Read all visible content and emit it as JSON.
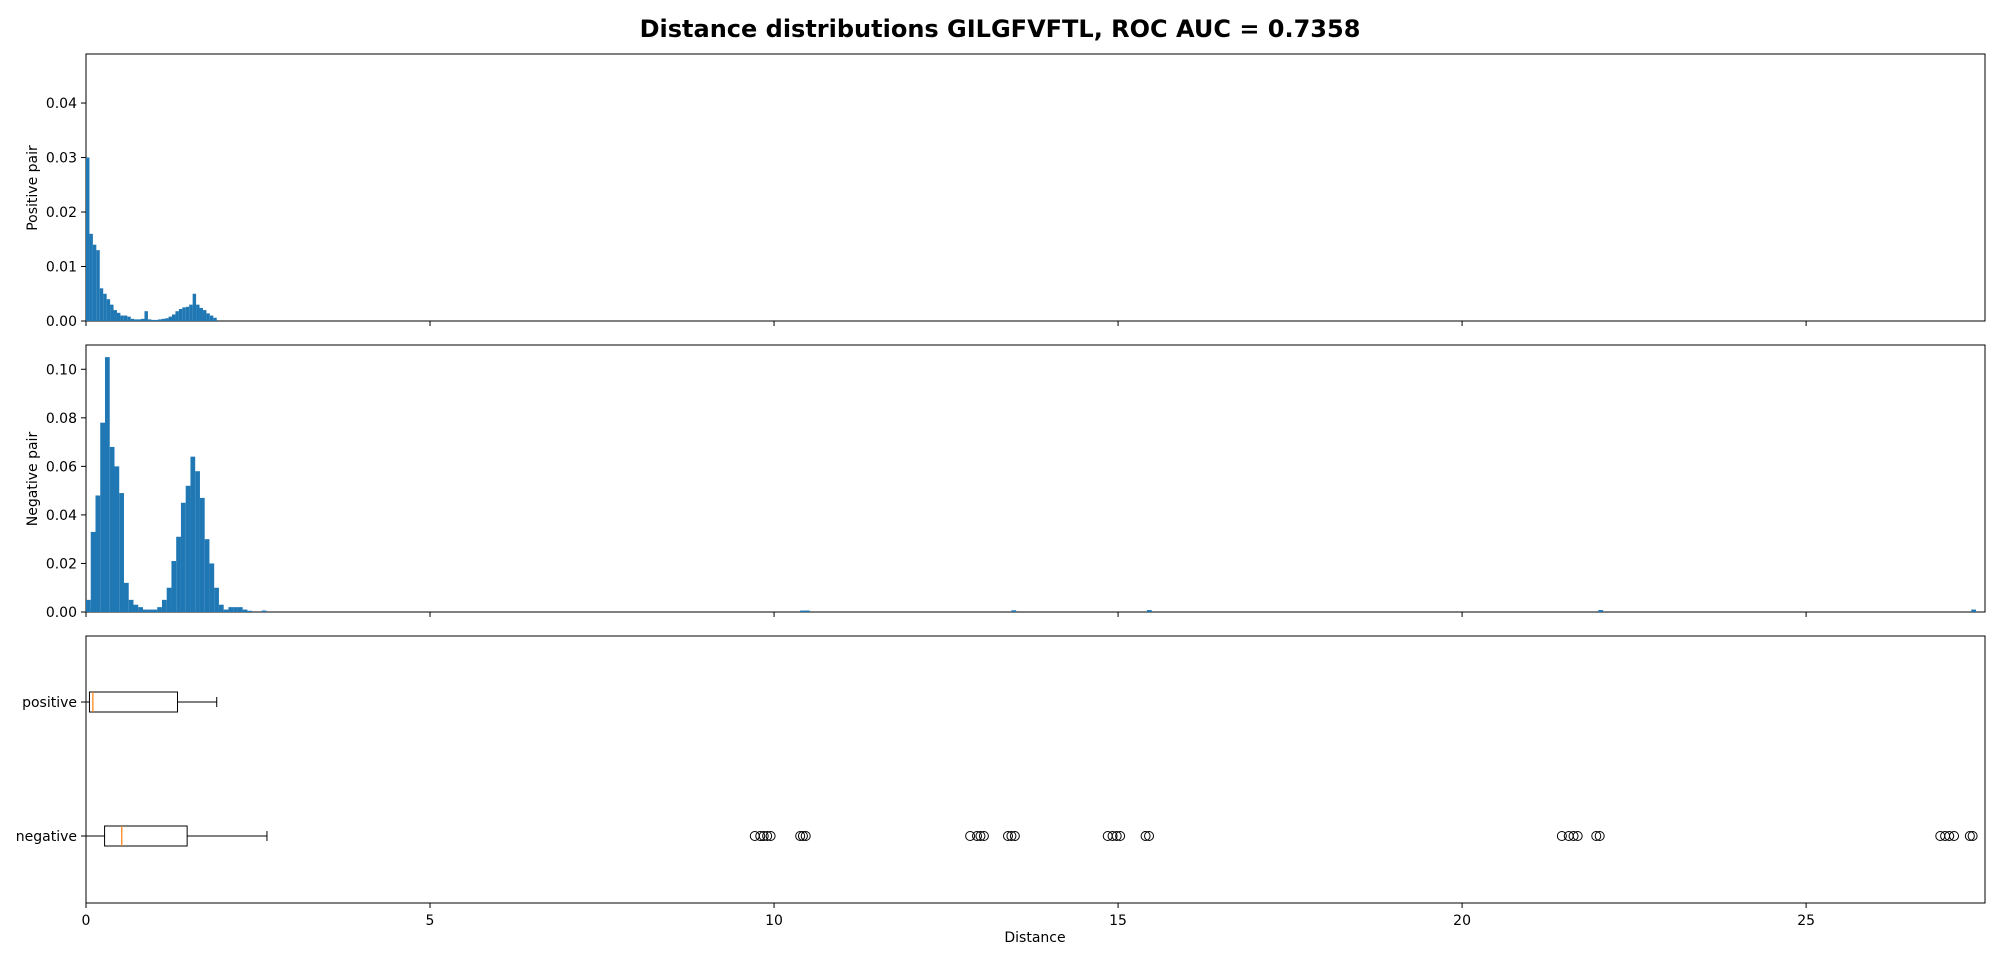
{
  "title": "Distance distributions GILGFVFTL, ROC AUC = 0.7358",
  "colors": {
    "bar": "#1f77b4",
    "median": "#ff7f0e",
    "frame": "#000000"
  },
  "chart_data": [
    {
      "type": "bar",
      "panel": "positive",
      "ylabel": "Positive pair",
      "xlim": [
        0,
        27.6
      ],
      "ylim": [
        0,
        0.049
      ],
      "yticks": [
        0.0,
        0.01,
        0.02,
        0.03,
        0.04
      ],
      "ytick_labels": [
        "0.00",
        "0.01",
        "0.02",
        "0.03",
        "0.04"
      ],
      "bin_width": 0.05,
      "bins": [
        [
          0.0,
          0.03
        ],
        [
          0.05,
          0.016
        ],
        [
          0.1,
          0.014
        ],
        [
          0.15,
          0.013
        ],
        [
          0.2,
          0.006
        ],
        [
          0.25,
          0.005
        ],
        [
          0.3,
          0.004
        ],
        [
          0.35,
          0.003
        ],
        [
          0.4,
          0.002
        ],
        [
          0.45,
          0.0015
        ],
        [
          0.5,
          0.001
        ],
        [
          0.55,
          0.001
        ],
        [
          0.6,
          0.0008
        ],
        [
          0.65,
          0.0004
        ],
        [
          0.7,
          0.0003
        ],
        [
          0.75,
          0.0003
        ],
        [
          0.8,
          0.0004
        ],
        [
          0.85,
          0.0018
        ],
        [
          0.9,
          0.0003
        ],
        [
          0.95,
          0.0002
        ],
        [
          1.0,
          0.0002
        ],
        [
          1.05,
          0.0003
        ],
        [
          1.1,
          0.0004
        ],
        [
          1.15,
          0.0005
        ],
        [
          1.2,
          0.0008
        ],
        [
          1.25,
          0.0012
        ],
        [
          1.3,
          0.0018
        ],
        [
          1.35,
          0.0022
        ],
        [
          1.4,
          0.0025
        ],
        [
          1.45,
          0.0026
        ],
        [
          1.5,
          0.003
        ],
        [
          1.55,
          0.005
        ],
        [
          1.6,
          0.003
        ],
        [
          1.65,
          0.0024
        ],
        [
          1.7,
          0.002
        ],
        [
          1.75,
          0.0014
        ],
        [
          1.8,
          0.001
        ],
        [
          1.85,
          0.0006
        ]
      ]
    },
    {
      "type": "bar",
      "panel": "negative",
      "ylabel": "Negative pair",
      "xlim": [
        0,
        27.6
      ],
      "ylim": [
        0,
        0.11
      ],
      "yticks": [
        0.0,
        0.02,
        0.04,
        0.06,
        0.08,
        0.1
      ],
      "ytick_labels": [
        "0.00",
        "0.02",
        "0.04",
        "0.06",
        "0.08",
        "0.10"
      ],
      "bin_width": 0.069,
      "bins": [
        [
          0.0,
          0.005
        ],
        [
          0.069,
          0.033
        ],
        [
          0.138,
          0.048
        ],
        [
          0.207,
          0.078
        ],
        [
          0.276,
          0.105
        ],
        [
          0.345,
          0.068
        ],
        [
          0.414,
          0.06
        ],
        [
          0.483,
          0.049
        ],
        [
          0.552,
          0.012
        ],
        [
          0.621,
          0.005
        ],
        [
          0.69,
          0.003
        ],
        [
          0.759,
          0.002
        ],
        [
          0.828,
          0.001
        ],
        [
          0.897,
          0.001
        ],
        [
          0.966,
          0.001
        ],
        [
          1.035,
          0.002
        ],
        [
          1.104,
          0.005
        ],
        [
          1.173,
          0.01
        ],
        [
          1.242,
          0.021
        ],
        [
          1.311,
          0.031
        ],
        [
          1.38,
          0.045
        ],
        [
          1.449,
          0.052
        ],
        [
          1.518,
          0.064
        ],
        [
          1.587,
          0.058
        ],
        [
          1.656,
          0.047
        ],
        [
          1.725,
          0.03
        ],
        [
          1.794,
          0.02
        ],
        [
          1.863,
          0.01
        ],
        [
          1.932,
          0.003
        ],
        [
          2.001,
          0.001
        ],
        [
          2.07,
          0.002
        ],
        [
          2.139,
          0.002
        ],
        [
          2.208,
          0.002
        ],
        [
          2.277,
          0.001
        ],
        [
          2.346,
          0.0005
        ],
        [
          2.553,
          0.0006
        ],
        [
          10.38,
          0.0006
        ],
        [
          10.45,
          0.0006
        ],
        [
          13.45,
          0.0007
        ],
        [
          15.42,
          0.0008
        ],
        [
          21.98,
          0.0008
        ],
        [
          27.4,
          0.001
        ]
      ]
    },
    {
      "type": "box",
      "panel": "boxplot",
      "xlabel": "Distance",
      "xlim": [
        0,
        27.6
      ],
      "xticks": [
        0,
        5,
        10,
        15,
        20,
        25
      ],
      "xtick_labels": [
        "0",
        "5",
        "10",
        "15",
        "20",
        "25"
      ],
      "categories": [
        "positive",
        "negative"
      ],
      "boxes": [
        {
          "label": "positive",
          "whisker_low": 0.0,
          "q1": 0.05,
          "median": 0.1,
          "q3": 1.33,
          "whisker_high": 1.9,
          "outliers": []
        },
        {
          "label": "negative",
          "whisker_low": 0.0,
          "q1": 0.27,
          "median": 0.52,
          "q3": 1.47,
          "whisker_high": 2.63,
          "outliers": [
            9.72,
            9.8,
            9.85,
            9.9,
            9.95,
            10.38,
            10.42,
            10.46,
            12.85,
            12.95,
            13.0,
            13.05,
            13.4,
            13.45,
            13.5,
            14.85,
            14.92,
            14.98,
            15.03,
            15.4,
            15.45,
            21.45,
            21.55,
            21.62,
            21.68,
            21.95,
            22.0,
            26.95,
            27.02,
            27.08,
            27.15,
            27.38,
            27.42
          ]
        }
      ]
    }
  ]
}
